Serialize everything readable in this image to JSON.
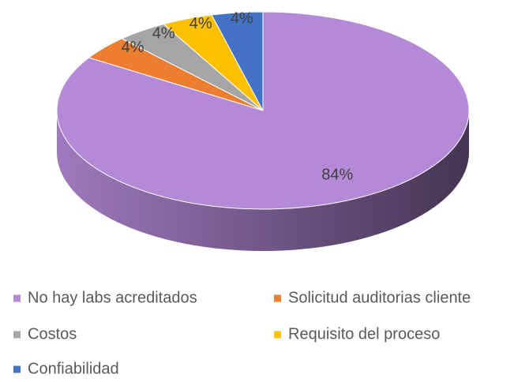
{
  "chart_data": {
    "type": "pie",
    "categories": [
      "No hay labs acreditados",
      "Solicitud auditorias cliente",
      "Costos",
      "Requisito del proceso",
      "Confiabilidad"
    ],
    "values": [
      84,
      4,
      4,
      4,
      4
    ],
    "value_labels": [
      "84%",
      "4%",
      "4%",
      "4%",
      "4%"
    ],
    "colors": [
      "#b48ad8",
      "#ed7d31",
      "#a5a5a5",
      "#ffc000",
      "#4472c4"
    ],
    "legend": "bottom"
  }
}
